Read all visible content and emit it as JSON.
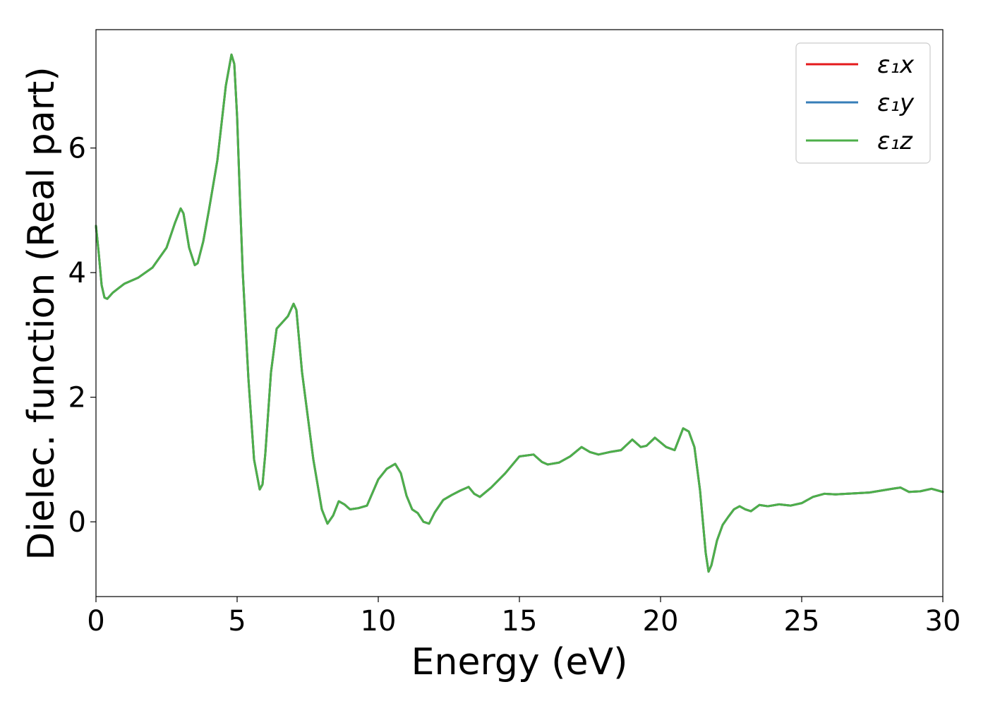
{
  "chart_data": {
    "type": "line",
    "xlabel": "Energy (eV)",
    "ylabel": "Dielec. function (Real part)",
    "xlim": [
      0,
      30
    ],
    "ylim": [
      -1.2,
      7.9
    ],
    "xticks": [
      0,
      5,
      10,
      15,
      20,
      25,
      30
    ],
    "xtick_labels": [
      "0",
      "5",
      "10",
      "15",
      "20",
      "25",
      "30"
    ],
    "yticks": [
      0,
      2,
      4,
      6
    ],
    "ytick_labels": [
      "0",
      "2",
      "4",
      "6"
    ],
    "grid": false,
    "legend_position": "top-right",
    "x": [
      0,
      0.1,
      0.2,
      0.3,
      0.4,
      0.6,
      0.8,
      1.0,
      1.5,
      2.0,
      2.5,
      2.8,
      3.0,
      3.1,
      3.3,
      3.5,
      3.6,
      3.8,
      4.0,
      4.3,
      4.6,
      4.8,
      4.9,
      5.0,
      5.1,
      5.2,
      5.4,
      5.6,
      5.8,
      5.9,
      6.0,
      6.2,
      6.4,
      6.6,
      6.8,
      7.0,
      7.1,
      7.3,
      7.5,
      7.7,
      8.0,
      8.2,
      8.4,
      8.6,
      8.8,
      9.0,
      9.3,
      9.6,
      10.0,
      10.3,
      10.6,
      10.8,
      11.0,
      11.2,
      11.4,
      11.6,
      11.8,
      12.0,
      12.3,
      12.6,
      12.9,
      13.2,
      13.4,
      13.6,
      14.0,
      14.5,
      15.0,
      15.5,
      15.8,
      16.0,
      16.4,
      16.8,
      17.2,
      17.5,
      17.8,
      18.2,
      18.6,
      19.0,
      19.3,
      19.5,
      19.8,
      20.2,
      20.5,
      20.8,
      21.0,
      21.2,
      21.4,
      21.6,
      21.7,
      21.8,
      22.0,
      22.2,
      22.4,
      22.6,
      22.8,
      23.0,
      23.2,
      23.5,
      23.8,
      24.2,
      24.6,
      25.0,
      25.4,
      25.8,
      26.2,
      26.6,
      27.0,
      27.4,
      27.8,
      28.2,
      28.5,
      28.8,
      29.2,
      29.6,
      30.0
    ],
    "series": [
      {
        "name": "ε₁x",
        "color": "#e41a1c",
        "y": [
          4.75,
          4.3,
          3.8,
          3.6,
          3.58,
          3.68,
          3.75,
          3.82,
          3.92,
          4.08,
          4.4,
          4.8,
          5.03,
          4.95,
          4.4,
          4.12,
          4.15,
          4.5,
          5.0,
          5.8,
          7.0,
          7.5,
          7.35,
          6.5,
          5.2,
          4.0,
          2.3,
          1.0,
          0.52,
          0.6,
          1.1,
          2.4,
          3.1,
          3.2,
          3.3,
          3.5,
          3.4,
          2.4,
          1.7,
          1.0,
          0.2,
          -0.03,
          0.1,
          0.33,
          0.28,
          0.2,
          0.22,
          0.26,
          0.68,
          0.85,
          0.93,
          0.78,
          0.42,
          0.2,
          0.14,
          0.0,
          -0.03,
          0.15,
          0.35,
          0.43,
          0.5,
          0.56,
          0.45,
          0.4,
          0.55,
          0.78,
          1.05,
          1.08,
          0.96,
          0.92,
          0.95,
          1.05,
          1.2,
          1.12,
          1.08,
          1.12,
          1.15,
          1.32,
          1.2,
          1.22,
          1.35,
          1.2,
          1.15,
          1.5,
          1.45,
          1.2,
          0.5,
          -0.5,
          -0.8,
          -0.7,
          -0.3,
          -0.05,
          0.08,
          0.2,
          0.25,
          0.2,
          0.17,
          0.27,
          0.25,
          0.28,
          0.26,
          0.3,
          0.4,
          0.45,
          0.44,
          0.45,
          0.46,
          0.47,
          0.5,
          0.53,
          0.55,
          0.48,
          0.49,
          0.53,
          0.48
        ]
      },
      {
        "name": "ε₁y",
        "color": "#377eb8",
        "y": [
          4.75,
          4.3,
          3.8,
          3.6,
          3.58,
          3.68,
          3.75,
          3.82,
          3.92,
          4.08,
          4.4,
          4.8,
          5.03,
          4.95,
          4.4,
          4.12,
          4.15,
          4.5,
          5.0,
          5.8,
          7.0,
          7.5,
          7.35,
          6.5,
          5.2,
          4.0,
          2.3,
          1.0,
          0.52,
          0.6,
          1.1,
          2.4,
          3.1,
          3.2,
          3.3,
          3.5,
          3.4,
          2.4,
          1.7,
          1.0,
          0.2,
          -0.03,
          0.1,
          0.33,
          0.28,
          0.2,
          0.22,
          0.26,
          0.68,
          0.85,
          0.93,
          0.78,
          0.42,
          0.2,
          0.14,
          0.0,
          -0.03,
          0.15,
          0.35,
          0.43,
          0.5,
          0.56,
          0.45,
          0.4,
          0.55,
          0.78,
          1.05,
          1.08,
          0.96,
          0.92,
          0.95,
          1.05,
          1.2,
          1.12,
          1.08,
          1.12,
          1.15,
          1.32,
          1.2,
          1.22,
          1.35,
          1.2,
          1.15,
          1.5,
          1.45,
          1.2,
          0.5,
          -0.5,
          -0.8,
          -0.7,
          -0.3,
          -0.05,
          0.08,
          0.2,
          0.25,
          0.2,
          0.17,
          0.27,
          0.25,
          0.28,
          0.26,
          0.3,
          0.4,
          0.45,
          0.44,
          0.45,
          0.46,
          0.47,
          0.5,
          0.53,
          0.55,
          0.48,
          0.49,
          0.53,
          0.48
        ]
      },
      {
        "name": "ε₁z",
        "color": "#4daf4a",
        "y": [
          4.75,
          4.3,
          3.8,
          3.6,
          3.58,
          3.68,
          3.75,
          3.82,
          3.92,
          4.08,
          4.4,
          4.8,
          5.03,
          4.95,
          4.4,
          4.12,
          4.15,
          4.5,
          5.0,
          5.8,
          7.0,
          7.5,
          7.35,
          6.5,
          5.2,
          4.0,
          2.3,
          1.0,
          0.52,
          0.6,
          1.1,
          2.4,
          3.1,
          3.2,
          3.3,
          3.5,
          3.4,
          2.4,
          1.7,
          1.0,
          0.2,
          -0.03,
          0.1,
          0.33,
          0.28,
          0.2,
          0.22,
          0.26,
          0.68,
          0.85,
          0.93,
          0.78,
          0.42,
          0.2,
          0.14,
          0.0,
          -0.03,
          0.15,
          0.35,
          0.43,
          0.5,
          0.56,
          0.45,
          0.4,
          0.55,
          0.78,
          1.05,
          1.08,
          0.96,
          0.92,
          0.95,
          1.05,
          1.2,
          1.12,
          1.08,
          1.12,
          1.15,
          1.32,
          1.2,
          1.22,
          1.35,
          1.2,
          1.15,
          1.5,
          1.45,
          1.2,
          0.5,
          -0.5,
          -0.8,
          -0.7,
          -0.3,
          -0.05,
          0.08,
          0.2,
          0.25,
          0.2,
          0.17,
          0.27,
          0.25,
          0.28,
          0.26,
          0.3,
          0.4,
          0.45,
          0.44,
          0.45,
          0.46,
          0.47,
          0.5,
          0.53,
          0.55,
          0.48,
          0.49,
          0.53,
          0.48
        ]
      }
    ]
  }
}
